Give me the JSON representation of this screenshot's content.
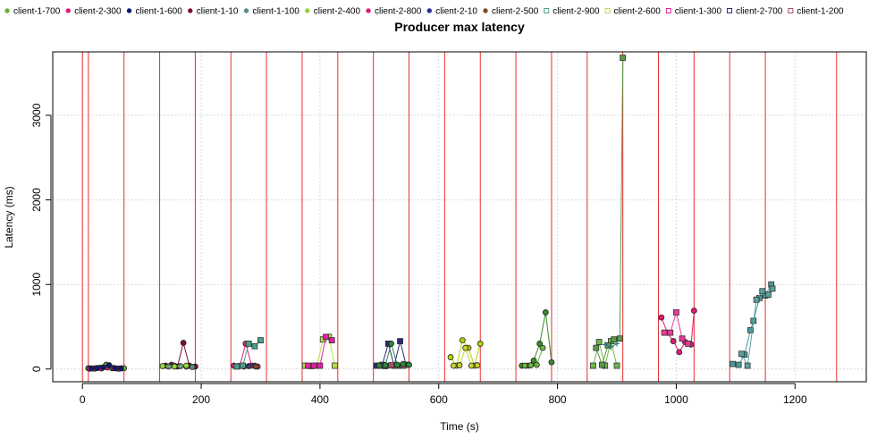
{
  "chart_data": {
    "type": "line",
    "title": "Producer max latency",
    "xlabel": "Time (s)",
    "ylabel": "Latency (ms)",
    "xlim": [
      -50,
      1320
    ],
    "ylim": [
      -150,
      3750
    ],
    "x_ticks": [
      0,
      200,
      400,
      600,
      800,
      1000,
      1200
    ],
    "y_ticks": [
      0,
      1000,
      2000,
      3000
    ],
    "grid": true,
    "legend_position": "top",
    "vlines": [
      0,
      10,
      70,
      130,
      190,
      250,
      310,
      370,
      430,
      490,
      550,
      610,
      670,
      730,
      790,
      850,
      910,
      970,
      1030,
      1090,
      1150,
      1270
    ],
    "vline_color": "#e83030",
    "series": [
      {
        "name": "client-1-700",
        "color": "#6aae34",
        "marker": "circle",
        "x": [
          10,
          20,
          30,
          40,
          50,
          60,
          70
        ],
        "y": [
          10,
          5,
          15,
          50,
          10,
          5,
          10
        ]
      },
      {
        "name": "client-2-300",
        "color": "#e0197a",
        "marker": "circle",
        "x": [
          12,
          22,
          32,
          42,
          52,
          62
        ],
        "y": [
          5,
          10,
          8,
          20,
          12,
          6
        ]
      },
      {
        "name": "client-1-600",
        "color": "#0a1a6e",
        "marker": "circle",
        "x": [
          15,
          25,
          35,
          45,
          55,
          65
        ],
        "y": [
          8,
          12,
          20,
          45,
          10,
          8
        ]
      },
      {
        "name": "client-1-10",
        "color": "#7b1128",
        "marker": "circle",
        "x": [
          140,
          150,
          160,
          170,
          180,
          190
        ],
        "y": [
          40,
          50,
          30,
          310,
          40,
          30
        ]
      },
      {
        "name": "client-1-100",
        "color": "#5a8a8a",
        "marker": "circle",
        "x": [
          145,
          155,
          165,
          175,
          185
        ],
        "y": [
          30,
          40,
          35,
          30,
          25
        ]
      },
      {
        "name": "client-2-400",
        "color": "#94d43a",
        "marker": "circle",
        "x": [
          135,
          155,
          175
        ],
        "y": [
          35,
          30,
          40
        ]
      },
      {
        "name": "client-2-800",
        "color": "#e0197a",
        "marker": "circle",
        "x": [
          255,
          265,
          275,
          285,
          295
        ],
        "y": [
          40,
          35,
          300,
          40,
          30
        ]
      },
      {
        "name": "client-2-10",
        "color": "#2a2a9a",
        "marker": "circle",
        "x": [
          260,
          270,
          280,
          290
        ],
        "y": [
          30,
          40,
          35,
          40
        ]
      },
      {
        "name": "client-2-500",
        "color": "#7a4a2a",
        "marker": "circle",
        "x": [
          262,
          272,
          292
        ],
        "y": [
          35,
          30,
          30
        ]
      },
      {
        "name": "client-2-900",
        "color": "#4aa08a",
        "marker": "square",
        "x": [
          260,
          270,
          280,
          290,
          300
        ],
        "y": [
          30,
          40,
          300,
          270,
          340
        ]
      },
      {
        "name": "client-2-600",
        "color": "#b8e04a",
        "marker": "square",
        "x": [
          375,
          385,
          395,
          405,
          415,
          425
        ],
        "y": [
          40,
          35,
          40,
          350,
          380,
          40
        ]
      },
      {
        "name": "client-1-300",
        "color": "#e61fa0",
        "marker": "square",
        "x": [
          380,
          390,
          400,
          410,
          420
        ],
        "y": [
          40,
          40,
          40,
          380,
          340
        ]
      },
      {
        "name": "client-2-700",
        "color": "#2a2a7a",
        "marker": "square",
        "x": [
          495,
          505,
          515,
          525,
          535,
          545
        ],
        "y": [
          40,
          50,
          300,
          40,
          330,
          50
        ]
      },
      {
        "name": "client-1-200",
        "color": "#a0506a",
        "marker": "square",
        "x": [
          500,
          510,
          520,
          530,
          540
        ],
        "y": [
          40,
          35,
          45,
          40,
          40
        ]
      }
    ],
    "extra_series": [
      {
        "color": "#2a8a3a",
        "marker": "circle",
        "x": [
          500,
          510,
          520,
          530,
          540,
          550
        ],
        "y": [
          40,
          45,
          300,
          50,
          60,
          50
        ]
      },
      {
        "color": "#b4d400",
        "marker": "circle",
        "x": [
          620,
          630,
          640,
          650,
          660,
          670
        ],
        "y": [
          140,
          40,
          340,
          250,
          40,
          300
        ]
      },
      {
        "color": "#c8d030",
        "marker": "circle",
        "x": [
          625,
          635,
          645,
          655,
          665
        ],
        "y": [
          40,
          45,
          250,
          40,
          45
        ]
      },
      {
        "color": "#3a8a2a",
        "marker": "circle",
        "x": [
          740,
          750,
          760,
          770,
          780,
          790
        ],
        "y": [
          40,
          40,
          100,
          300,
          670,
          80
        ]
      },
      {
        "color": "#6ab83a",
        "marker": "circle",
        "x": [
          745,
          755,
          765,
          775
        ],
        "y": [
          40,
          45,
          50,
          250
        ]
      },
      {
        "color": "#70b848",
        "marker": "square",
        "x": [
          860,
          870,
          880,
          890,
          900
        ],
        "y": [
          40,
          320,
          40,
          330,
          40
        ]
      },
      {
        "color": "#5a9a4a",
        "marker": "square",
        "x": [
          865,
          875,
          885,
          895,
          905,
          910
        ],
        "y": [
          250,
          50,
          280,
          350,
          360,
          3680
        ]
      },
      {
        "color": "#2a7a7a",
        "marker": "cross",
        "x": [
          880,
          890,
          900
        ],
        "y": [
          290,
          260,
          300
        ]
      },
      {
        "color": "#e0197a",
        "marker": "circle",
        "x": [
          975,
          985,
          995,
          1005,
          1015,
          1025,
          1030
        ],
        "y": [
          610,
          430,
          330,
          200,
          320,
          290,
          690
        ]
      },
      {
        "color": "#e83a9a",
        "marker": "square",
        "x": [
          980,
          990,
          1000,
          1010,
          1020
        ],
        "y": [
          430,
          430,
          670,
          360,
          300
        ]
      },
      {
        "color": "#4a9a9a",
        "marker": "square",
        "x": [
          1095,
          1105,
          1115,
          1125,
          1130,
          1140,
          1150,
          1160
        ],
        "y": [
          60,
          50,
          170,
          460,
          570,
          840,
          870,
          1000
        ]
      },
      {
        "color": "#5aa0a0",
        "marker": "square",
        "x": [
          1110,
          1120,
          1135,
          1145,
          1155,
          1162
        ],
        "y": [
          180,
          40,
          820,
          920,
          880,
          950
        ]
      }
    ]
  }
}
